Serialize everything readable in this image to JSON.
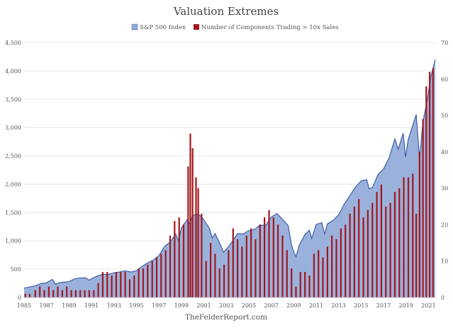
{
  "chart_data": {
    "type": "area+bar",
    "title": "Valuation Extremes",
    "footer": "TheFelderReport.com",
    "legend": [
      {
        "label": "S&P 500 Index",
        "color": "#8fa8d8"
      },
      {
        "label": "Number of Components Trading > 10x Sales",
        "color": "#a3171c"
      }
    ],
    "legend_position": "top-center",
    "grid": true,
    "x_axis": {
      "range": [
        1985,
        2021.6
      ],
      "tick_labels": [
        "1985",
        "1987",
        "1989",
        "1991",
        "1993",
        "1995",
        "1997",
        "1999",
        "2001",
        "2003",
        "2005",
        "2007",
        "2009",
        "2011",
        "2013",
        "2015",
        "2017",
        "2019",
        "2021"
      ]
    },
    "y_left": {
      "range": [
        0,
        4500
      ],
      "tick_labels": [
        "0",
        "500",
        "1,000",
        "1,500",
        "2,000",
        "2,500",
        "3,000",
        "3,500",
        "4,000",
        "4,500"
      ]
    },
    "y_right": {
      "range": [
        0,
        70
      ],
      "tick_labels": [
        "0",
        "10",
        "20",
        "30",
        "40",
        "50",
        "60",
        "70"
      ]
    },
    "series": [
      {
        "name": "S&P 500 Index",
        "kind": "area",
        "axis": "left",
        "color": "#8fa8d8",
        "points": [
          [
            1985.0,
            165
          ],
          [
            1985.5,
            185
          ],
          [
            1986.0,
            205
          ],
          [
            1986.5,
            245
          ],
          [
            1987.0,
            260
          ],
          [
            1987.5,
            320
          ],
          [
            1987.8,
            235
          ],
          [
            1988.0,
            255
          ],
          [
            1988.5,
            270
          ],
          [
            1989.0,
            280
          ],
          [
            1989.5,
            330
          ],
          [
            1990.0,
            345
          ],
          [
            1990.5,
            345
          ],
          [
            1990.8,
            305
          ],
          [
            1991.0,
            330
          ],
          [
            1991.5,
            380
          ],
          [
            1992.0,
            410
          ],
          [
            1992.5,
            410
          ],
          [
            1993.0,
            435
          ],
          [
            1993.5,
            450
          ],
          [
            1994.0,
            470
          ],
          [
            1994.5,
            450
          ],
          [
            1995.0,
            470
          ],
          [
            1995.5,
            550
          ],
          [
            1996.0,
            610
          ],
          [
            1996.5,
            660
          ],
          [
            1997.0,
            740
          ],
          [
            1997.5,
            900
          ],
          [
            1998.0,
            980
          ],
          [
            1998.5,
            1120
          ],
          [
            1998.75,
            1000
          ],
          [
            1999.0,
            1230
          ],
          [
            1999.5,
            1370
          ],
          [
            1999.75,
            1300
          ],
          [
            2000.0,
            1450
          ],
          [
            2000.5,
            1470
          ],
          [
            2000.75,
            1430
          ],
          [
            2001.0,
            1370
          ],
          [
            2001.5,
            1220
          ],
          [
            2001.75,
            1050
          ],
          [
            2002.0,
            1130
          ],
          [
            2002.5,
            920
          ],
          [
            2002.75,
            800
          ],
          [
            2003.0,
            850
          ],
          [
            2003.5,
            980
          ],
          [
            2004.0,
            1130
          ],
          [
            2004.5,
            1120
          ],
          [
            2005.0,
            1180
          ],
          [
            2005.5,
            1200
          ],
          [
            2006.0,
            1280
          ],
          [
            2006.5,
            1270
          ],
          [
            2007.0,
            1420
          ],
          [
            2007.5,
            1480
          ],
          [
            2008.0,
            1380
          ],
          [
            2008.5,
            1270
          ],
          [
            2008.8,
            930
          ],
          [
            2009.0,
            800
          ],
          [
            2009.2,
            720
          ],
          [
            2009.5,
            930
          ],
          [
            2010.0,
            1110
          ],
          [
            2010.4,
            1190
          ],
          [
            2010.6,
            1040
          ],
          [
            2011.0,
            1290
          ],
          [
            2011.5,
            1320
          ],
          [
            2011.75,
            1120
          ],
          [
            2012.0,
            1300
          ],
          [
            2012.5,
            1360
          ],
          [
            2013.0,
            1460
          ],
          [
            2013.5,
            1650
          ],
          [
            2014.0,
            1800
          ],
          [
            2014.5,
            1950
          ],
          [
            2015.0,
            2060
          ],
          [
            2015.5,
            2080
          ],
          [
            2015.7,
            1920
          ],
          [
            2016.0,
            1940
          ],
          [
            2016.5,
            2170
          ],
          [
            2017.0,
            2270
          ],
          [
            2017.5,
            2470
          ],
          [
            2018.0,
            2800
          ],
          [
            2018.3,
            2620
          ],
          [
            2018.75,
            2900
          ],
          [
            2018.95,
            2480
          ],
          [
            2019.2,
            2800
          ],
          [
            2019.5,
            2980
          ],
          [
            2019.9,
            3230
          ],
          [
            2020.2,
            2450
          ],
          [
            2020.5,
            3100
          ],
          [
            2020.9,
            3500
          ],
          [
            2021.2,
            3900
          ],
          [
            2021.6,
            4200
          ]
        ]
      },
      {
        "name": "Number of Components Trading > 10x Sales",
        "kind": "bar",
        "axis": "right",
        "color": "#a3171c",
        "points": [
          [
            1985.1,
            1
          ],
          [
            1985.5,
            1
          ],
          [
            1986.0,
            2
          ],
          [
            1986.4,
            3
          ],
          [
            1986.8,
            2
          ],
          [
            1987.2,
            3
          ],
          [
            1987.6,
            2
          ],
          [
            1988.0,
            3
          ],
          [
            1988.4,
            2
          ],
          [
            1988.8,
            3
          ],
          [
            1989.2,
            2
          ],
          [
            1989.6,
            2
          ],
          [
            1990.0,
            2
          ],
          [
            1990.4,
            2
          ],
          [
            1990.8,
            2
          ],
          [
            1991.2,
            2
          ],
          [
            1991.6,
            4
          ],
          [
            1992.0,
            7
          ],
          [
            1992.4,
            7
          ],
          [
            1992.8,
            6
          ],
          [
            1993.2,
            7
          ],
          [
            1993.6,
            7
          ],
          [
            1994.0,
            7
          ],
          [
            1994.4,
            5
          ],
          [
            1994.8,
            6
          ],
          [
            1995.2,
            8
          ],
          [
            1995.6,
            8
          ],
          [
            1996.0,
            9
          ],
          [
            1996.4,
            10
          ],
          [
            1996.8,
            11
          ],
          [
            1997.2,
            12
          ],
          [
            1997.6,
            13
          ],
          [
            1998.0,
            17
          ],
          [
            1998.4,
            21
          ],
          [
            1998.8,
            22
          ],
          [
            1999.2,
            20
          ],
          [
            1999.6,
            36
          ],
          [
            1999.8,
            45
          ],
          [
            2000.0,
            41
          ],
          [
            2000.3,
            33
          ],
          [
            2000.5,
            30
          ],
          [
            2000.8,
            23
          ],
          [
            2001.2,
            10
          ],
          [
            2001.6,
            15
          ],
          [
            2002.0,
            12
          ],
          [
            2002.4,
            8
          ],
          [
            2002.8,
            9
          ],
          [
            2003.2,
            13
          ],
          [
            2003.6,
            19
          ],
          [
            2004.0,
            16
          ],
          [
            2004.4,
            14
          ],
          [
            2004.8,
            17
          ],
          [
            2005.2,
            19
          ],
          [
            2005.6,
            16
          ],
          [
            2006.0,
            20
          ],
          [
            2006.4,
            22
          ],
          [
            2006.8,
            24
          ],
          [
            2007.2,
            22
          ],
          [
            2007.6,
            20
          ],
          [
            2008.0,
            17
          ],
          [
            2008.4,
            13
          ],
          [
            2008.8,
            8
          ],
          [
            2009.2,
            3
          ],
          [
            2009.6,
            7
          ],
          [
            2010.0,
            7
          ],
          [
            2010.4,
            6
          ],
          [
            2010.8,
            12
          ],
          [
            2011.2,
            13
          ],
          [
            2011.6,
            11
          ],
          [
            2012.0,
            14
          ],
          [
            2012.4,
            17
          ],
          [
            2012.8,
            16
          ],
          [
            2013.2,
            19
          ],
          [
            2013.6,
            20
          ],
          [
            2014.0,
            23
          ],
          [
            2014.4,
            25
          ],
          [
            2014.8,
            27
          ],
          [
            2015.2,
            22
          ],
          [
            2015.6,
            24
          ],
          [
            2016.0,
            26
          ],
          [
            2016.4,
            29
          ],
          [
            2016.8,
            31
          ],
          [
            2017.2,
            25
          ],
          [
            2017.6,
            26
          ],
          [
            2018.0,
            29
          ],
          [
            2018.4,
            30
          ],
          [
            2018.8,
            33
          ],
          [
            2019.2,
            33
          ],
          [
            2019.6,
            34
          ],
          [
            2019.9,
            23
          ],
          [
            2020.2,
            40
          ],
          [
            2020.5,
            49
          ],
          [
            2020.8,
            58
          ],
          [
            2021.1,
            62
          ],
          [
            2021.4,
            63
          ]
        ]
      }
    ]
  }
}
